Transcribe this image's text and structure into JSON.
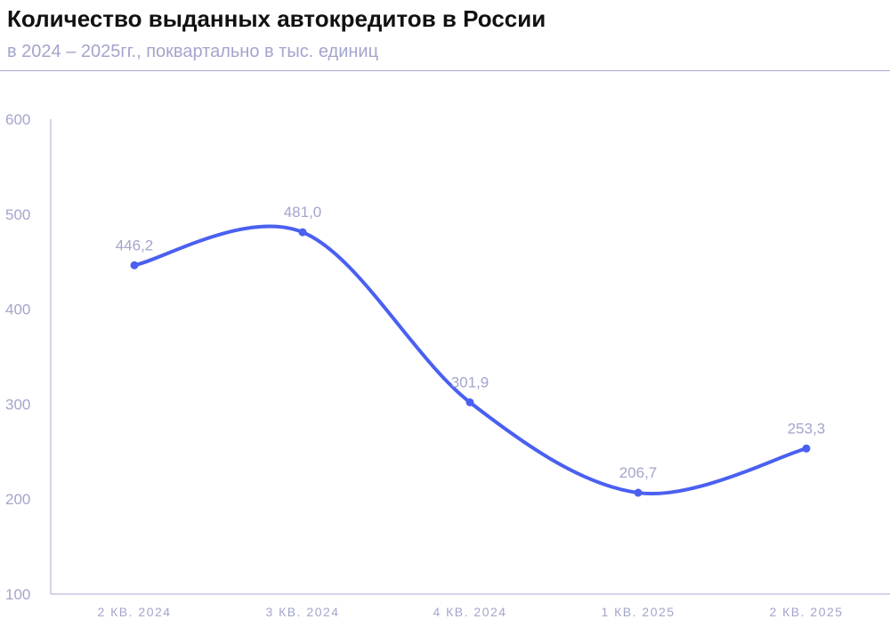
{
  "title": "Количество выданных автокредитов в России",
  "subtitle": "в 2024 – 2025гг., поквартально в тыс. единиц",
  "colors": {
    "line": "#4a60f0",
    "axis": "#a9abd3",
    "tick_text": "#a3a5cc",
    "title": "#111111"
  },
  "chart_data": {
    "type": "line",
    "title": "Количество выданных автокредитов в России",
    "subtitle": "в 2024 – 2025гг., поквартально в тыс. единиц",
    "categories": [
      "2 КВ. 2024",
      "3 КВ. 2024",
      "4 КВ. 2024",
      "1 КВ. 2025",
      "2 КВ. 2025"
    ],
    "values": [
      446.2,
      481.0,
      301.9,
      206.7,
      253.3
    ],
    "value_labels": [
      "446,2",
      "481,0",
      "301,9",
      "206,7",
      "253,3"
    ],
    "y_ticks": [
      "600",
      "500",
      "400",
      "300",
      "200",
      "100"
    ],
    "y_tick_values": [
      600,
      500,
      400,
      300,
      200,
      100
    ],
    "ylim": [
      100,
      600
    ],
    "grid": false,
    "smooth": true,
    "xlabel": "",
    "ylabel": ""
  }
}
